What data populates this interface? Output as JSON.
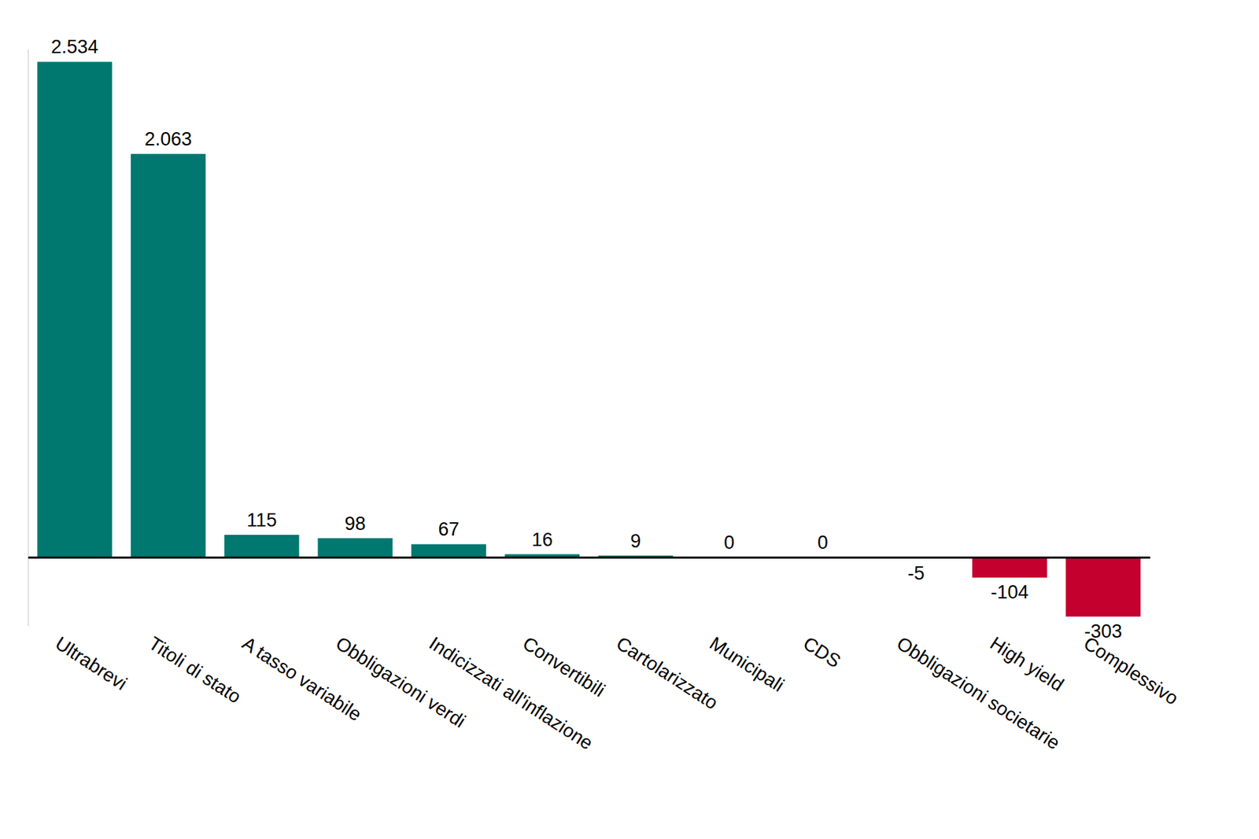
{
  "chart_data": {
    "type": "bar",
    "categories": [
      "Ultrabrevi",
      "Titoli di stato",
      "A tasso variabile",
      "Obbligazioni verdi",
      "Indicizzati all'inflazione",
      "Convertibili",
      "Cartolarizzato",
      "Municipali",
      "CDS",
      "Obbligazioni societarie",
      "High yield",
      "Complessivo"
    ],
    "values": [
      2534,
      2063,
      115,
      98,
      67,
      16,
      9,
      0,
      0,
      -5,
      -104,
      -303
    ],
    "value_labels": [
      "2.534",
      "2.063",
      "115",
      "98",
      "67",
      "16",
      "9",
      "0",
      "0",
      "-5",
      "-104",
      "-303"
    ],
    "colors": [
      "#00786f",
      "#00786f",
      "#00786f",
      "#00786f",
      "#00786f",
      "#00786f",
      "#00786f",
      "#00786f",
      "#00786f",
      "#e8c8d0",
      "#c4002f",
      "#c4002f"
    ],
    "ylim": [
      -350,
      2600
    ],
    "data_labels": true,
    "tick_labels": "x",
    "grid": false
  }
}
